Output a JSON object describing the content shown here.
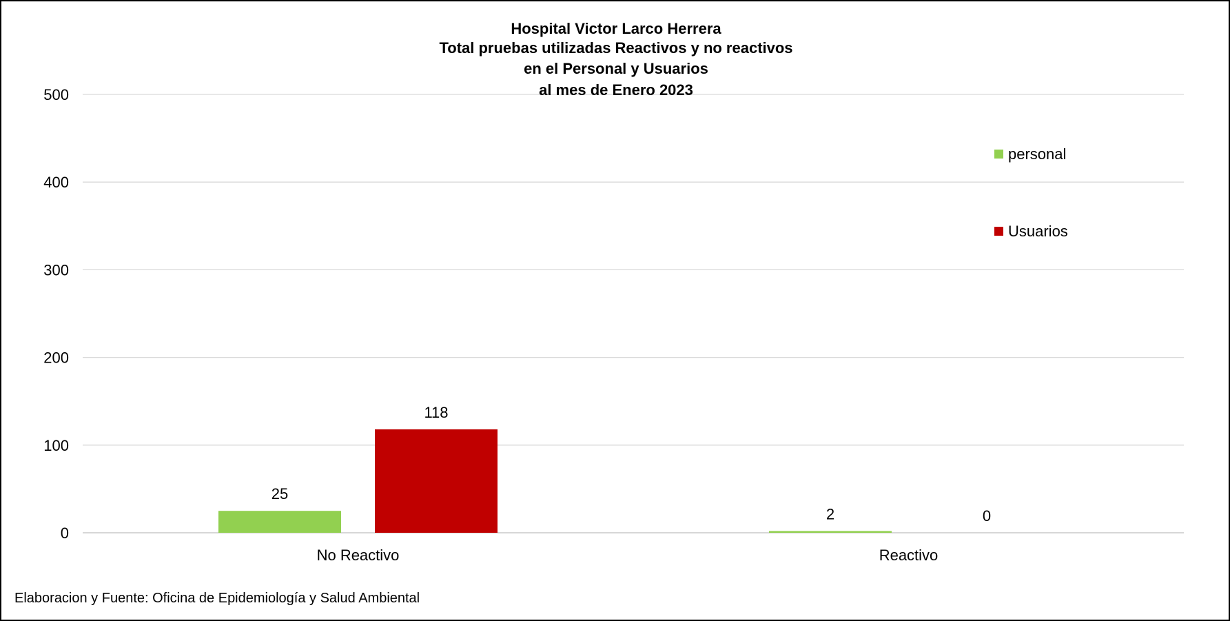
{
  "chart_data": {
    "type": "bar",
    "title_lines": [
      "Hospital Victor Larco Herrera",
      "Total pruebas utilizadas Reactivos y no reactivos",
      "en el Personal y Usuarios",
      "al mes de Enero 2023"
    ],
    "categories": [
      "No Reactivo",
      "Reactivo"
    ],
    "series": [
      {
        "name": "personal",
        "values": [
          25,
          2
        ],
        "color": "#92d050"
      },
      {
        "name": "Usuarios",
        "values": [
          118,
          0
        ],
        "color": "#c00000"
      }
    ],
    "ylim": [
      0,
      500
    ],
    "yticks": [
      0,
      100,
      200,
      300,
      400,
      500
    ],
    "grid": true,
    "legend_position": "right"
  },
  "footer": {
    "source": "Elaboracion y Fuente: Oficina de Epidemiología y Salud Ambiental"
  }
}
